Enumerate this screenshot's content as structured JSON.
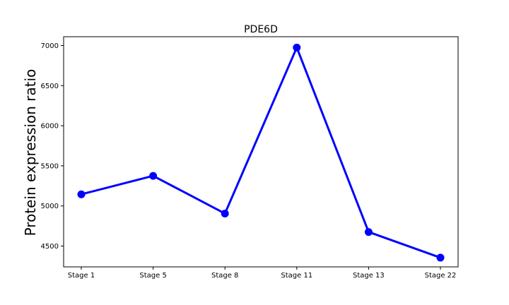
{
  "chart_data": {
    "type": "line",
    "title": "PDE6D",
    "xlabel": "",
    "ylabel": "Protein expression ratio",
    "categories": [
      "Stage 1",
      "Stage 5",
      "Stage 8",
      "Stage 11",
      "Stage 13",
      "Stage 22"
    ],
    "series": [
      {
        "values": [
          5145,
          5375,
          4905,
          6975,
          4675,
          4355
        ],
        "color": "#0000ff"
      }
    ],
    "ylim": [
      4240,
      7110
    ],
    "yticks": [
      4500,
      5000,
      5500,
      6000,
      6500,
      7000
    ],
    "grid": false,
    "legend": "none"
  }
}
